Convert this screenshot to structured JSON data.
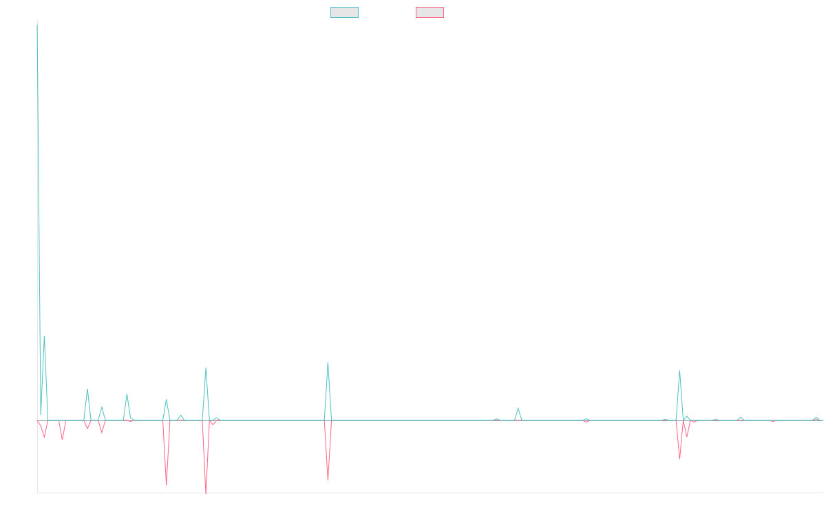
{
  "chart_data": {
    "type": "line",
    "title": "",
    "xlabel": "",
    "ylabel": "",
    "grid": false,
    "legend": "top-center",
    "x_range": [
      0,
      148
    ],
    "ylim": [
      -13,
      75
    ],
    "x": [
      0,
      1,
      2,
      3,
      4,
      5,
      6,
      7,
      8,
      9,
      10,
      11,
      12,
      13,
      14,
      15,
      16,
      17,
      18,
      19,
      20,
      21,
      22,
      23,
      24,
      25,
      26,
      27,
      28,
      29,
      30,
      31,
      32,
      33,
      34,
      35,
      36,
      37,
      38,
      39,
      40,
      41,
      42,
      43,
      44,
      45,
      46,
      47,
      48,
      49,
      50,
      51,
      52,
      53,
      54,
      55,
      56,
      57,
      58,
      59,
      60,
      61,
      62,
      63,
      64,
      65,
      66,
      67,
      68,
      69,
      70,
      71,
      72,
      73,
      74,
      75,
      76,
      77,
      78,
      79,
      80,
      81,
      82,
      83,
      84,
      85,
      86,
      87,
      88,
      89,
      90,
      91,
      92,
      93,
      94,
      95,
      96,
      97,
      98,
      99,
      100,
      101,
      102,
      103,
      104,
      105,
      106,
      107,
      108,
      109,
      110,
      111,
      112,
      113,
      114,
      115,
      116,
      117,
      118,
      119,
      120,
      121,
      122,
      123,
      124,
      125,
      126,
      127,
      128,
      129,
      130,
      131,
      132,
      133,
      134,
      135,
      136,
      137,
      138,
      139,
      140,
      141,
      142,
      143,
      144,
      145,
      146,
      147,
      148
    ],
    "series": [
      {
        "color": "#4bc0c0",
        "values": [
          75,
          1,
          16,
          0,
          0,
          0,
          0,
          0,
          0,
          0,
          0,
          0,
          0,
          0,
          0,
          0,
          0,
          0,
          0,
          0,
          0,
          0,
          0,
          0,
          0,
          0,
          0,
          0,
          0,
          0,
          0,
          0,
          0,
          0,
          0,
          0,
          0,
          0,
          0,
          0,
          0,
          0,
          0,
          0,
          0,
          0,
          0,
          0,
          0,
          0,
          0,
          0,
          0,
          0,
          0,
          0,
          0,
          0,
          0,
          0,
          0,
          0,
          0,
          0,
          0,
          0,
          0,
          0,
          0,
          0,
          0,
          0,
          0,
          0,
          0,
          0,
          0,
          0,
          0,
          0,
          0,
          0,
          0,
          0,
          0,
          0,
          0,
          0,
          0,
          0,
          0,
          0,
          0,
          0,
          0,
          0,
          0,
          0,
          0,
          0,
          0,
          0,
          0,
          0,
          0,
          0,
          0,
          0,
          0,
          0,
          0,
          0,
          0,
          0,
          0,
          0,
          0,
          0,
          0,
          0,
          0,
          0,
          0,
          0,
          0,
          0,
          0,
          0,
          0,
          0,
          0,
          0,
          0,
          0,
          0,
          0,
          0,
          0,
          0,
          0,
          0,
          0,
          0,
          0,
          0,
          0,
          0,
          0,
          0
        ]
      },
      {
        "color": "#ff6384",
        "values": [
          0,
          -1,
          -3,
          0,
          0,
          0,
          0,
          0,
          0,
          0,
          0,
          0,
          0,
          0,
          0,
          0,
          0,
          0,
          0,
          0,
          0,
          0,
          0,
          0,
          0,
          0,
          0,
          0,
          0,
          0,
          0,
          0,
          0,
          0,
          0,
          0,
          0,
          0,
          0,
          0,
          0,
          0,
          0,
          0,
          0,
          0,
          0,
          0,
          0,
          0,
          0,
          0,
          0,
          0,
          0,
          0,
          0,
          0,
          0,
          0,
          0,
          0,
          0,
          0,
          0,
          0,
          0,
          0,
          0,
          0,
          0,
          0,
          0,
          0,
          0,
          0,
          0,
          0,
          0,
          0,
          0,
          0,
          0,
          0,
          0,
          0,
          0,
          0,
          0,
          0,
          0,
          0,
          0,
          0,
          0,
          0,
          0,
          0,
          0,
          0,
          0,
          0,
          0,
          0,
          0,
          0,
          0,
          0,
          0,
          0,
          0,
          0,
          0,
          0,
          0,
          0,
          0,
          0,
          0,
          0,
          0,
          0,
          0,
          0,
          0,
          0,
          0,
          0,
          0,
          0,
          0,
          0,
          0,
          0,
          0,
          0,
          0,
          0,
          0,
          0,
          0,
          0,
          0,
          0,
          0,
          0,
          0,
          0,
          0
        ]
      }
    ],
    "point_overrides": {
      "s0": {
        "7": 0,
        "8": 0,
        "10": 0,
        "14": 6,
        "15": 0,
        "16": 0,
        "18": 2.5,
        "19": 0,
        "20": 0,
        "21": 0,
        "25": 5,
        "26": 0.5,
        "27": 0,
        "36": 4,
        "37": 0,
        "40": 1,
        "41": 0,
        "47": 10,
        "48": 0,
        "50": 0.5,
        "51": 0,
        "81": 11,
        "82": 0,
        "128": 0.3,
        "129": 0,
        "131": 0,
        "134": 2.3,
        "135": 0,
        "153": 0.3,
        "154": 0,
        "175": 0.2,
        "176": 0,
        "179": 9.5,
        "180": 0,
        "181": 0.8,
        "182": 0,
        "183": 0,
        "189": 0.2,
        "190": 0,
        "196": 0.6,
        "197": 0,
        "200": 0,
        "205": 0,
        "217": 0.6,
        "218": 0
      },
      "s1": {
        "7": -3.5,
        "8": 0,
        "10": 0,
        "14": -1.5,
        "15": 0,
        "16": 0,
        "18": -2.2,
        "19": 0,
        "20": 0,
        "25": 0,
        "26": -0.2,
        "27": 0,
        "36": -11.7,
        "37": 0,
        "40": 0,
        "41": 0,
        "47": -13.3,
        "48": 0,
        "49": -0.8,
        "50": 0,
        "81": -10.8,
        "82": 0,
        "128": 0,
        "129": 0,
        "153": -0.3,
        "154": 0,
        "175": 0,
        "179": -7,
        "180": 0,
        "181": -3,
        "182": 0,
        "183": -0.3,
        "184": 0,
        "205": -0.2,
        "206": 0,
        "217": 0.2,
        "218": 0
      }
    }
  }
}
